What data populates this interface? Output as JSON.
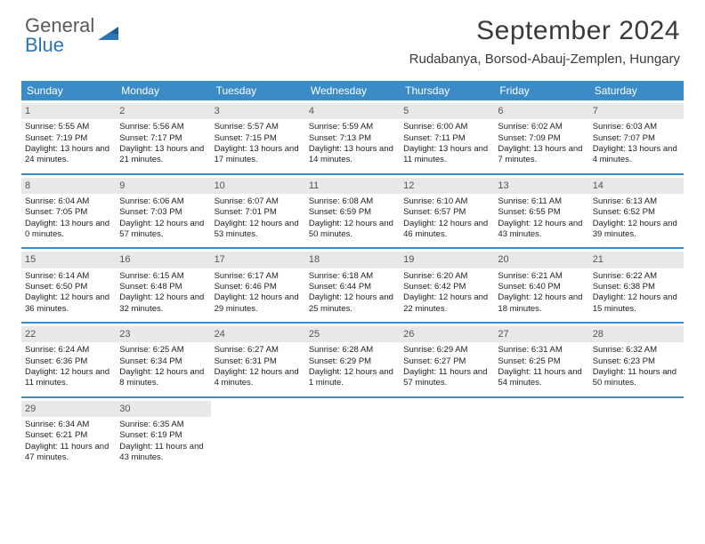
{
  "logo": {
    "word1": "General",
    "word2": "Blue"
  },
  "header": {
    "month_title": "September 2024",
    "location": "Rudabanya, Borsod-Abauj-Zemplen, Hungary"
  },
  "colors": {
    "header_bg": "#3b8bc6",
    "header_text": "#ffffff",
    "daynum_bg": "#e8e8e8",
    "daynum_text": "#555555",
    "row_divider": "#3b8bc6",
    "logo_gray": "#5a5a5a",
    "logo_blue": "#2e75b6"
  },
  "weekdays": [
    "Sunday",
    "Monday",
    "Tuesday",
    "Wednesday",
    "Thursday",
    "Friday",
    "Saturday"
  ],
  "days": [
    {
      "n": 1,
      "sunrise": "5:55 AM",
      "sunset": "7:19 PM",
      "daylight": "13 hours and 24 minutes."
    },
    {
      "n": 2,
      "sunrise": "5:56 AM",
      "sunset": "7:17 PM",
      "daylight": "13 hours and 21 minutes."
    },
    {
      "n": 3,
      "sunrise": "5:57 AM",
      "sunset": "7:15 PM",
      "daylight": "13 hours and 17 minutes."
    },
    {
      "n": 4,
      "sunrise": "5:59 AM",
      "sunset": "7:13 PM",
      "daylight": "13 hours and 14 minutes."
    },
    {
      "n": 5,
      "sunrise": "6:00 AM",
      "sunset": "7:11 PM",
      "daylight": "13 hours and 11 minutes."
    },
    {
      "n": 6,
      "sunrise": "6:02 AM",
      "sunset": "7:09 PM",
      "daylight": "13 hours and 7 minutes."
    },
    {
      "n": 7,
      "sunrise": "6:03 AM",
      "sunset": "7:07 PM",
      "daylight": "13 hours and 4 minutes."
    },
    {
      "n": 8,
      "sunrise": "6:04 AM",
      "sunset": "7:05 PM",
      "daylight": "13 hours and 0 minutes."
    },
    {
      "n": 9,
      "sunrise": "6:06 AM",
      "sunset": "7:03 PM",
      "daylight": "12 hours and 57 minutes."
    },
    {
      "n": 10,
      "sunrise": "6:07 AM",
      "sunset": "7:01 PM",
      "daylight": "12 hours and 53 minutes."
    },
    {
      "n": 11,
      "sunrise": "6:08 AM",
      "sunset": "6:59 PM",
      "daylight": "12 hours and 50 minutes."
    },
    {
      "n": 12,
      "sunrise": "6:10 AM",
      "sunset": "6:57 PM",
      "daylight": "12 hours and 46 minutes."
    },
    {
      "n": 13,
      "sunrise": "6:11 AM",
      "sunset": "6:55 PM",
      "daylight": "12 hours and 43 minutes."
    },
    {
      "n": 14,
      "sunrise": "6:13 AM",
      "sunset": "6:52 PM",
      "daylight": "12 hours and 39 minutes."
    },
    {
      "n": 15,
      "sunrise": "6:14 AM",
      "sunset": "6:50 PM",
      "daylight": "12 hours and 36 minutes."
    },
    {
      "n": 16,
      "sunrise": "6:15 AM",
      "sunset": "6:48 PM",
      "daylight": "12 hours and 32 minutes."
    },
    {
      "n": 17,
      "sunrise": "6:17 AM",
      "sunset": "6:46 PM",
      "daylight": "12 hours and 29 minutes."
    },
    {
      "n": 18,
      "sunrise": "6:18 AM",
      "sunset": "6:44 PM",
      "daylight": "12 hours and 25 minutes."
    },
    {
      "n": 19,
      "sunrise": "6:20 AM",
      "sunset": "6:42 PM",
      "daylight": "12 hours and 22 minutes."
    },
    {
      "n": 20,
      "sunrise": "6:21 AM",
      "sunset": "6:40 PM",
      "daylight": "12 hours and 18 minutes."
    },
    {
      "n": 21,
      "sunrise": "6:22 AM",
      "sunset": "6:38 PM",
      "daylight": "12 hours and 15 minutes."
    },
    {
      "n": 22,
      "sunrise": "6:24 AM",
      "sunset": "6:36 PM",
      "daylight": "12 hours and 11 minutes."
    },
    {
      "n": 23,
      "sunrise": "6:25 AM",
      "sunset": "6:34 PM",
      "daylight": "12 hours and 8 minutes."
    },
    {
      "n": 24,
      "sunrise": "6:27 AM",
      "sunset": "6:31 PM",
      "daylight": "12 hours and 4 minutes."
    },
    {
      "n": 25,
      "sunrise": "6:28 AM",
      "sunset": "6:29 PM",
      "daylight": "12 hours and 1 minute."
    },
    {
      "n": 26,
      "sunrise": "6:29 AM",
      "sunset": "6:27 PM",
      "daylight": "11 hours and 57 minutes."
    },
    {
      "n": 27,
      "sunrise": "6:31 AM",
      "sunset": "6:25 PM",
      "daylight": "11 hours and 54 minutes."
    },
    {
      "n": 28,
      "sunrise": "6:32 AM",
      "sunset": "6:23 PM",
      "daylight": "11 hours and 50 minutes."
    },
    {
      "n": 29,
      "sunrise": "6:34 AM",
      "sunset": "6:21 PM",
      "daylight": "11 hours and 47 minutes."
    },
    {
      "n": 30,
      "sunrise": "6:35 AM",
      "sunset": "6:19 PM",
      "daylight": "11 hours and 43 minutes."
    }
  ],
  "labels": {
    "sunrise": "Sunrise:",
    "sunset": "Sunset:",
    "daylight": "Daylight:"
  },
  "layout": {
    "first_weekday_index": 0,
    "total_days": 30,
    "columns": 7
  }
}
